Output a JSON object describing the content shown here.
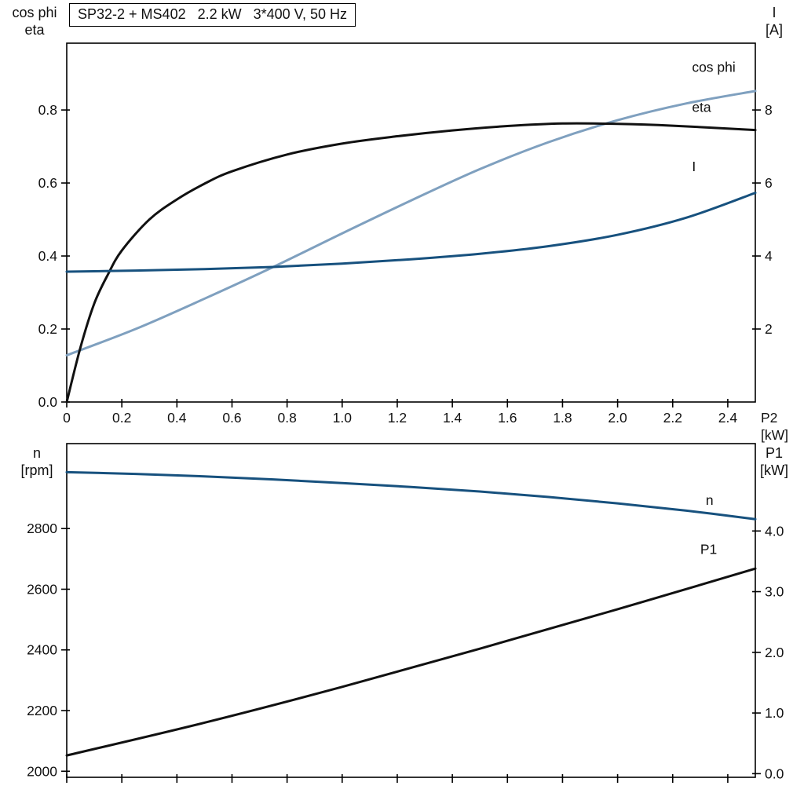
{
  "chart_data": [
    {
      "id": "top-chart",
      "type": "line",
      "title": "SP32-2 + MS402   2.2 kW   3*400 V, 50 Hz",
      "xlabel": "P2 [kW]",
      "ylabel_left_lines": [
        "cos phi",
        "eta"
      ],
      "ylabel_right_lines": [
        "I",
        "[A]"
      ],
      "xlim": [
        0,
        2.5
      ],
      "ylim_left": [
        0,
        0.983
      ],
      "ylim_right": [
        0,
        9.83
      ],
      "grid": false,
      "xticks": {
        "values": [
          0,
          0.2,
          0.4,
          0.6,
          0.8,
          1.0,
          1.2,
          1.4,
          1.6,
          1.8,
          2.0,
          2.2,
          2.4
        ],
        "labels": [
          "0",
          "0.2",
          "0.4",
          "0.6",
          "0.8",
          "1.0",
          "1.2",
          "1.4",
          "1.6",
          "1.8",
          "2.0",
          "2.2",
          "2.4"
        ]
      },
      "yticks_left": {
        "values": [
          0,
          0.2,
          0.4,
          0.6,
          0.8
        ],
        "labels": [
          "0.0",
          "0.2",
          "0.4",
          "0.6",
          "0.8"
        ]
      },
      "yticks_right": {
        "values": [
          2,
          4,
          6,
          8
        ],
        "labels": [
          "2",
          "4",
          "6",
          "8"
        ]
      },
      "series": [
        {
          "name": "cos phi",
          "axis": "left",
          "color": "#7FA0BF",
          "x": [
            0,
            0.25,
            0.5,
            0.75,
            1.0,
            1.25,
            1.5,
            1.75,
            2.0,
            2.25,
            2.5
          ],
          "y": [
            0.128,
            0.2,
            0.283,
            0.37,
            0.462,
            0.552,
            0.638,
            0.712,
            0.772,
            0.818,
            0.852
          ]
        },
        {
          "name": "eta",
          "axis": "left",
          "color": "#111111",
          "x": [
            0,
            0.05,
            0.1,
            0.15,
            0.2,
            0.3,
            0.4,
            0.5,
            0.6,
            0.8,
            1.0,
            1.2,
            1.4,
            1.6,
            1.8,
            2.0,
            2.2,
            2.5
          ],
          "y": [
            0,
            0.15,
            0.27,
            0.35,
            0.415,
            0.5,
            0.555,
            0.598,
            0.632,
            0.678,
            0.708,
            0.728,
            0.744,
            0.756,
            0.763,
            0.762,
            0.757,
            0.745
          ]
        },
        {
          "name": "I",
          "axis": "right",
          "color": "#17517E",
          "x": [
            0,
            0.25,
            0.5,
            0.75,
            1.0,
            1.25,
            1.5,
            1.75,
            2.0,
            2.25,
            2.5
          ],
          "y": [
            3.57,
            3.6,
            3.64,
            3.7,
            3.79,
            3.91,
            4.06,
            4.27,
            4.58,
            5.05,
            5.73
          ]
        }
      ],
      "curve_labels": [
        {
          "text": "cos phi",
          "x": 2.27,
          "y": 0.905,
          "axis": "left",
          "color": "#7FA0BF"
        },
        {
          "text": "eta",
          "x": 2.27,
          "y": 0.795,
          "axis": "left",
          "color": "#111111"
        },
        {
          "text": "I",
          "x": 2.27,
          "y": 6.32,
          "axis": "right",
          "color": "#17517E"
        }
      ]
    },
    {
      "id": "bottom-chart",
      "type": "line",
      "title": "",
      "xlabel": "",
      "ylabel_left_lines": [
        "n",
        "[rpm]"
      ],
      "ylabel_right_lines": [
        "P1",
        "[kW]"
      ],
      "xlim": [
        0,
        2.5
      ],
      "ylim_left": [
        1980,
        3080
      ],
      "ylim_right": [
        -0.06,
        5.44
      ],
      "grid": false,
      "xticks": {
        "values": [
          0,
          0.2,
          0.4,
          0.6,
          0.8,
          1.0,
          1.2,
          1.4,
          1.6,
          1.8,
          2.0,
          2.2,
          2.4
        ],
        "labels": []
      },
      "yticks_left": {
        "values": [
          2000,
          2200,
          2400,
          2600,
          2800
        ],
        "labels": [
          "2000",
          "2200",
          "2400",
          "2600",
          "2800"
        ]
      },
      "yticks_right": {
        "values": [
          0,
          1,
          2,
          3,
          4
        ],
        "labels": [
          "0.0",
          "1.0",
          "2.0",
          "3.0",
          "4.0"
        ]
      },
      "series": [
        {
          "name": "n",
          "axis": "left",
          "color": "#17517E",
          "x": [
            0,
            0.25,
            0.5,
            0.75,
            1.0,
            1.25,
            1.5,
            1.75,
            2.0,
            2.25,
            2.5
          ],
          "y": [
            2986,
            2980,
            2972,
            2962,
            2950,
            2937,
            2922,
            2904,
            2883,
            2859,
            2831
          ]
        },
        {
          "name": "P1",
          "axis": "right",
          "color": "#111111",
          "x": [
            0,
            0.5,
            1.0,
            1.5,
            2.0,
            2.5
          ],
          "y": [
            0.3,
            0.84,
            1.43,
            2.06,
            2.71,
            3.38
          ]
        }
      ],
      "curve_labels": [
        {
          "text": "n",
          "x": 2.32,
          "y": 2878,
          "axis": "left",
          "color": "#17517E"
        },
        {
          "text": "P1",
          "x": 2.3,
          "y": 3.62,
          "axis": "right",
          "color": "#111111"
        }
      ]
    }
  ]
}
